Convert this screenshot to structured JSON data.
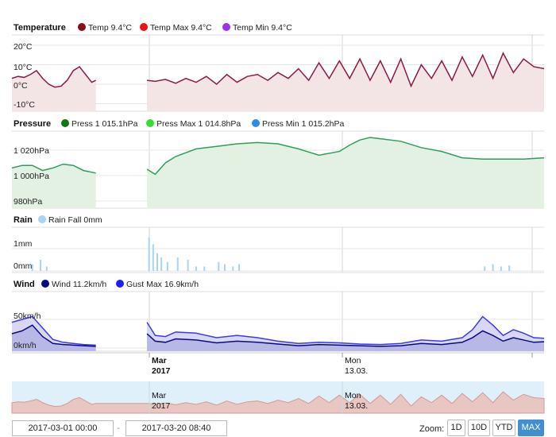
{
  "panels": [
    {
      "id": "temperature",
      "title": "Temperature",
      "legend": [
        {
          "label": "Temp 9.4°C",
          "color": "#8b0d1a"
        },
        {
          "label": "Temp Max 9.4°C",
          "color": "#ee1111"
        },
        {
          "label": "Temp Min 9.4°C",
          "color": "#9a33ee"
        }
      ],
      "ticks": [
        "20°C",
        "10°C",
        "0°C",
        "-10°C"
      ]
    },
    {
      "id": "pressure",
      "title": "Pressure",
      "legend": [
        {
          "label": "Press 1 015.1hPa",
          "color": "#117711"
        },
        {
          "label": "Press Max 1 014.8hPa",
          "color": "#33dd33"
        },
        {
          "label": "Press Min 1 015.2hPa",
          "color": "#2b8ee6"
        }
      ],
      "ticks": [
        "1 020hPa",
        "1 000hPa",
        "980hPa"
      ]
    },
    {
      "id": "rain",
      "title": "Rain",
      "legend": [
        {
          "label": "Rain Fall 0mm",
          "color": "#a9d3f0"
        }
      ],
      "ticks": [
        "1mm",
        "0mm"
      ]
    },
    {
      "id": "wind",
      "title": "Wind",
      "legend": [
        {
          "label": "Wind 11.2km/h",
          "color": "#0a0a80"
        },
        {
          "label": "Gust Max 16.9km/h",
          "color": "#2020ee"
        }
      ],
      "ticks": [
        "50km/h",
        "0km/h"
      ]
    }
  ],
  "xaxis": {
    "labels": [
      {
        "line1": "Mar",
        "line2": "2017",
        "bold": true
      },
      {
        "line1": "Mon",
        "line2": "13.03.",
        "bold": false
      }
    ]
  },
  "navigator": {
    "labels": [
      {
        "line1": "Mar",
        "line2": "2017"
      },
      {
        "line1": "Mon",
        "line2": "13.03."
      }
    ]
  },
  "range": {
    "from": "2017-03-01 00:00",
    "separator": "-",
    "to": "2017-03-20 08:40"
  },
  "zoom": {
    "label": "Zoom:",
    "buttons": [
      {
        "label": "1D",
        "active": false
      },
      {
        "label": "10D",
        "active": false
      },
      {
        "label": "YTD",
        "active": false
      },
      {
        "label": "MAX",
        "active": true
      }
    ]
  },
  "chart_data": [
    {
      "type": "line",
      "title": "Temperature",
      "ylim": [
        -10,
        20
      ],
      "gap": [
        4.1,
        6.6
      ],
      "t": [
        0,
        0.3,
        0.6,
        0.9,
        1.2,
        1.5,
        1.8,
        2.1,
        2.4,
        2.7,
        3.0,
        3.3,
        3.6,
        3.9,
        4.1,
        6.6,
        7.0,
        7.5,
        8.0,
        8.5,
        9.0,
        9.5,
        10.0,
        10.5,
        11.0,
        11.5,
        12.0,
        12.5,
        13.0,
        13.5,
        14.0,
        14.5,
        15.0,
        15.5,
        16.0,
        16.5,
        17.0,
        17.5,
        18.0,
        18.5,
        19.0,
        19.5,
        20.0,
        20.5,
        21.0,
        21.5,
        22.0,
        22.5,
        23.0,
        23.5,
        24.0,
        24.5,
        25.0,
        25.5,
        26.0
      ],
      "values": [
        3,
        4,
        3.5,
        5,
        7,
        3,
        0,
        -1.5,
        -1,
        2,
        7,
        9,
        5,
        1,
        2,
        2,
        1.5,
        2.5,
        0.5,
        3,
        1,
        4,
        0,
        5,
        1,
        4,
        5,
        2,
        6,
        3,
        8,
        2,
        11,
        3,
        12,
        3,
        13,
        2,
        12,
        1,
        13,
        -1,
        10,
        3,
        12,
        2,
        14,
        4,
        15,
        3,
        16,
        6,
        13,
        9,
        8
      ]
    },
    {
      "type": "area",
      "title": "Pressure",
      "ylim": [
        975,
        1030
      ],
      "gap": [
        4.1,
        6.6
      ],
      "t": [
        0,
        0.5,
        1.0,
        1.5,
        2.0,
        2.5,
        3.0,
        3.5,
        4.1,
        6.6,
        7.0,
        7.5,
        8.0,
        8.5,
        9.0,
        10.0,
        11.0,
        12.0,
        13.0,
        14.0,
        15.0,
        16.0,
        16.5,
        17.0,
        17.5,
        18.0,
        19.0,
        20.0,
        21.0,
        22.0,
        23.0,
        24.0,
        25.0,
        26.0
      ],
      "values": [
        1006,
        1008,
        1008,
        1004,
        1006,
        1009,
        1008,
        1004,
        1002,
        1005,
        1001,
        1010,
        1015,
        1018,
        1021,
        1023,
        1025,
        1026,
        1025,
        1021,
        1016,
        1019,
        1024,
        1028,
        1030,
        1029,
        1027,
        1022,
        1019,
        1014,
        1013,
        1013,
        1013,
        1014
      ]
    },
    {
      "type": "bar",
      "title": "Rain",
      "ylim": [
        0,
        2
      ],
      "t": [
        1.0,
        1.4,
        1.7,
        6.7,
        6.9,
        7.1,
        7.3,
        7.6,
        8.1,
        8.6,
        9.0,
        9.4,
        10.1,
        10.4,
        10.8,
        11.1,
        23.1,
        23.5,
        23.9,
        24.3
      ],
      "values": [
        0.3,
        0.5,
        0.2,
        1.5,
        1.2,
        0.8,
        0.6,
        0.4,
        0.6,
        0.5,
        0.2,
        0.2,
        0.4,
        0.3,
        0.2,
        0.3,
        0.2,
        0.3,
        0.2,
        0.25
      ]
    },
    {
      "type": "line",
      "title": "Wind",
      "ylim": [
        0,
        60
      ],
      "gap": [
        4.1,
        6.6
      ],
      "t": [
        0,
        0.5,
        1.0,
        1.5,
        2.0,
        2.5,
        3.0,
        3.5,
        4.1,
        6.6,
        7.0,
        7.5,
        8.0,
        9.0,
        10.0,
        11.0,
        12.0,
        13.0,
        14.0,
        15.0,
        16.0,
        17.0,
        18.0,
        19.0,
        20.0,
        21.0,
        22.0,
        22.5,
        23.0,
        23.5,
        24.0,
        24.5,
        25.0,
        25.5,
        26.0
      ],
      "series": [
        {
          "name": "Wind 11.2km/h",
          "values": [
            25,
            30,
            40,
            20,
            8,
            6,
            5,
            4,
            3,
            25,
            12,
            10,
            16,
            14,
            9,
            12,
            10,
            7,
            4,
            6,
            5,
            4,
            3,
            4,
            8,
            6,
            10,
            18,
            30,
            22,
            12,
            18,
            14,
            10,
            11
          ]
        },
        {
          "name": "Gust Max 16.9km/h",
          "values": [
            45,
            50,
            55,
            35,
            15,
            10,
            8,
            6,
            5,
            45,
            22,
            20,
            28,
            26,
            18,
            22,
            18,
            12,
            8,
            10,
            9,
            7,
            6,
            8,
            14,
            12,
            18,
            32,
            55,
            40,
            22,
            32,
            26,
            18,
            17
          ]
        }
      ]
    }
  ]
}
